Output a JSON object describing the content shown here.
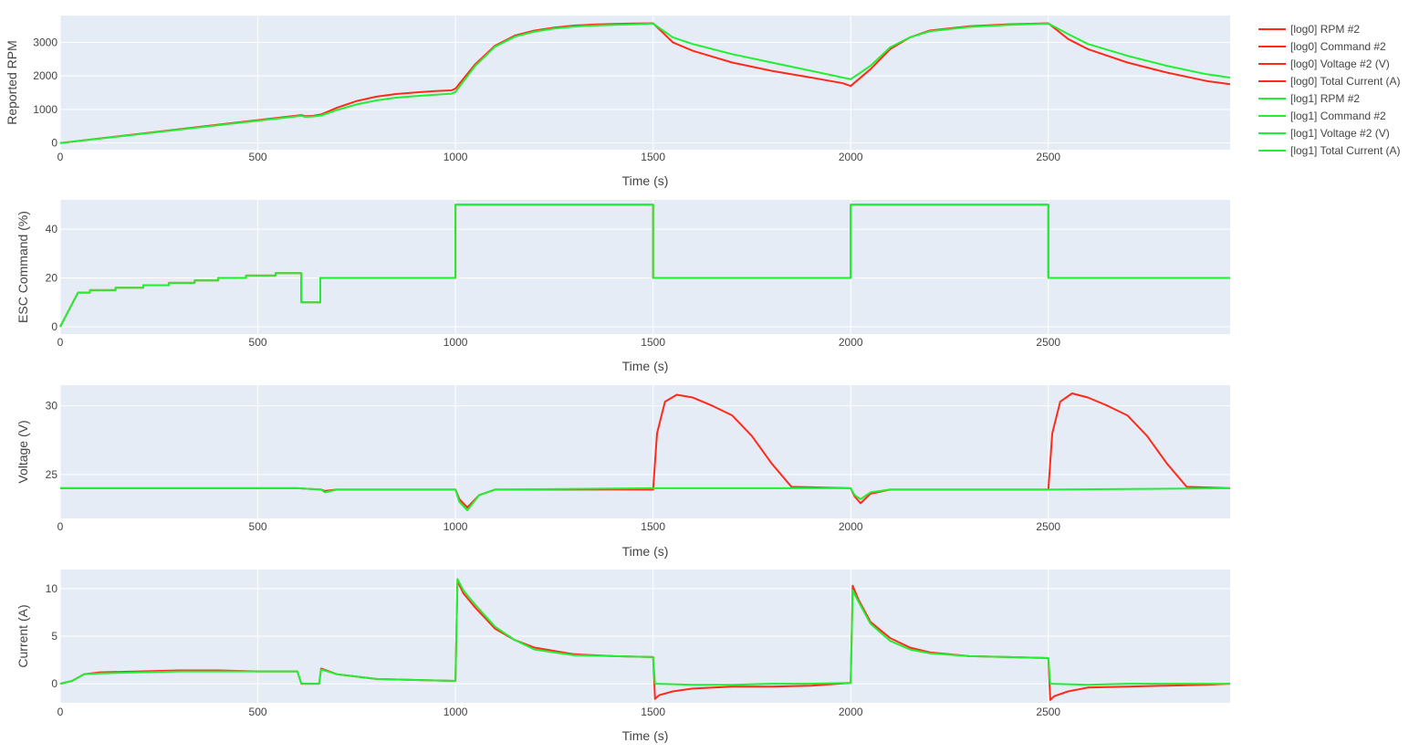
{
  "colors": {
    "plot_bg": "#e5ecf6",
    "grid": "#ffffff",
    "log0": "#ff2a1a",
    "log1": "#22ee33",
    "text": "#444444"
  },
  "legend": {
    "items": [
      {
        "label": "[log0] RPM #2",
        "group": "log0"
      },
      {
        "label": "[log0] Command #2",
        "group": "log0"
      },
      {
        "label": "[log0] Voltage #2 (V)",
        "group": "log0"
      },
      {
        "label": "[log0] Total Current (A)",
        "group": "log0"
      },
      {
        "label": "[log1] RPM #2",
        "group": "log1"
      },
      {
        "label": "[log1] Command #2",
        "group": "log1"
      },
      {
        "label": "[log1] Voltage #2 (V)",
        "group": "log1"
      },
      {
        "label": "[log1] Total Current (A)",
        "group": "log1"
      }
    ]
  },
  "chart_data": [
    {
      "type": "line",
      "ylabel": "Reported RPM",
      "xlabel": "Time (s)",
      "xlim": [
        0,
        2960
      ],
      "ylim": [
        -200,
        3800
      ],
      "xticks": [
        0,
        500,
        1000,
        1500,
        2000,
        2500
      ],
      "yticks": [
        0,
        1000,
        2000,
        3000
      ],
      "series": [
        {
          "name": "[log0] RPM #2",
          "group": "log0",
          "x": [
            0,
            610,
            620,
            640,
            660,
            700,
            750,
            800,
            850,
            900,
            950,
            990,
            1000,
            1050,
            1100,
            1150,
            1200,
            1250,
            1300,
            1350,
            1400,
            1450,
            1500,
            1550,
            1600,
            1700,
            1800,
            1900,
            1980,
            2000,
            2050,
            2100,
            2150,
            2200,
            2300,
            2400,
            2500,
            2550,
            2600,
            2700,
            2800,
            2900,
            2960
          ],
          "y": [
            0,
            830,
            800,
            810,
            850,
            1050,
            1250,
            1380,
            1460,
            1510,
            1550,
            1570,
            1620,
            2350,
            2900,
            3200,
            3350,
            3440,
            3500,
            3530,
            3550,
            3560,
            3570,
            3000,
            2750,
            2400,
            2150,
            1950,
            1780,
            1700,
            2200,
            2800,
            3150,
            3350,
            3480,
            3540,
            3570,
            3100,
            2800,
            2400,
            2100,
            1850,
            1750
          ]
        },
        {
          "name": "[log1] RPM #2",
          "group": "log1",
          "x": [
            0,
            610,
            620,
            640,
            660,
            700,
            750,
            800,
            850,
            900,
            950,
            990,
            1000,
            1050,
            1100,
            1150,
            1200,
            1250,
            1300,
            1350,
            1400,
            1450,
            1500,
            1550,
            1600,
            1700,
            1800,
            1900,
            1980,
            2000,
            2050,
            2100,
            2150,
            2200,
            2300,
            2400,
            2500,
            2550,
            2600,
            2700,
            2800,
            2900,
            2960
          ],
          "y": [
            0,
            810,
            780,
            790,
            820,
            980,
            1150,
            1270,
            1350,
            1400,
            1440,
            1470,
            1520,
            2300,
            2870,
            3170,
            3320,
            3410,
            3470,
            3500,
            3520,
            3540,
            3560,
            3150,
            2950,
            2650,
            2400,
            2150,
            1950,
            1900,
            2300,
            2850,
            3150,
            3330,
            3460,
            3520,
            3560,
            3250,
            2950,
            2600,
            2300,
            2050,
            1950
          ]
        }
      ]
    },
    {
      "type": "line",
      "ylabel": "ESC Command (%)",
      "xlabel": "Time (s)",
      "xlim": [
        0,
        2960
      ],
      "ylim": [
        -3,
        52
      ],
      "xticks": [
        0,
        500,
        1000,
        1500,
        2000,
        2500
      ],
      "yticks": [
        0,
        20,
        40
      ],
      "series": [
        {
          "name": "[log0] Command #2",
          "group": "log0",
          "x": [
            0,
            45,
            75,
            75,
            140,
            140,
            210,
            210,
            275,
            275,
            340,
            340,
            400,
            400,
            470,
            470,
            545,
            545,
            610,
            610,
            658,
            658,
            1000,
            1000,
            1500,
            1500,
            2000,
            2000,
            2500,
            2500,
            2960
          ],
          "y": [
            0,
            14,
            14,
            15,
            15,
            16,
            16,
            17,
            17,
            18,
            18,
            19,
            19,
            20,
            20,
            21,
            21,
            22,
            22,
            10,
            10,
            20,
            20,
            50,
            50,
            20,
            20,
            50,
            50,
            20,
            20
          ]
        },
        {
          "name": "[log1] Command #2",
          "group": "log1",
          "x": [
            0,
            45,
            75,
            75,
            140,
            140,
            210,
            210,
            275,
            275,
            340,
            340,
            400,
            400,
            470,
            470,
            545,
            545,
            610,
            610,
            658,
            658,
            1000,
            1000,
            1500,
            1500,
            2000,
            2000,
            2500,
            2500,
            2960
          ],
          "y": [
            0,
            14,
            14,
            15,
            15,
            16,
            16,
            17,
            17,
            18,
            18,
            19,
            19,
            20,
            20,
            21,
            21,
            22,
            22,
            10,
            10,
            20,
            20,
            50,
            50,
            20,
            20,
            50,
            50,
            20,
            20
          ]
        }
      ]
    },
    {
      "type": "line",
      "ylabel": "Voltage (V)",
      "xlabel": "Time (s)",
      "xlim": [
        0,
        2960
      ],
      "ylim": [
        21.8,
        31.5
      ],
      "xticks": [
        0,
        500,
        1000,
        1500,
        2000,
        2500
      ],
      "yticks": [
        25,
        30
      ],
      "series": [
        {
          "name": "[log0] Voltage #2 (V)",
          "group": "log0",
          "x": [
            0,
            600,
            660,
            670,
            700,
            1000,
            1010,
            1030,
            1060,
            1100,
            1500,
            1510,
            1530,
            1560,
            1600,
            1650,
            1700,
            1750,
            1800,
            1850,
            2000,
            2010,
            2025,
            2050,
            2100,
            2500,
            2510,
            2530,
            2560,
            2600,
            2650,
            2700,
            2750,
            2800,
            2850,
            2960
          ],
          "y": [
            24.0,
            24.0,
            23.9,
            23.8,
            23.9,
            23.9,
            23.2,
            22.6,
            23.5,
            23.9,
            23.9,
            28.0,
            30.3,
            30.8,
            30.6,
            30.0,
            29.3,
            27.8,
            25.8,
            24.1,
            24.0,
            23.4,
            22.9,
            23.6,
            23.9,
            23.9,
            28.0,
            30.3,
            30.9,
            30.6,
            30.0,
            29.3,
            27.8,
            25.8,
            24.1,
            24.0
          ]
        },
        {
          "name": "[log1] Voltage #2 (V)",
          "group": "log1",
          "x": [
            0,
            600,
            660,
            670,
            700,
            1000,
            1010,
            1030,
            1060,
            1100,
            1500,
            2000,
            2010,
            2025,
            2050,
            2100,
            2500,
            2960
          ],
          "y": [
            24.0,
            24.0,
            23.9,
            23.7,
            23.9,
            23.9,
            23.0,
            22.4,
            23.5,
            23.9,
            24.0,
            24.0,
            23.5,
            23.2,
            23.7,
            23.9,
            23.9,
            24.0
          ]
        }
      ]
    },
    {
      "type": "line",
      "ylabel": "Current (A)",
      "xlabel": "Time (s)",
      "xlim": [
        0,
        2960
      ],
      "ylim": [
        -2,
        12
      ],
      "xticks": [
        0,
        500,
        1000,
        1500,
        2000,
        2500
      ],
      "yticks": [
        0,
        5,
        10
      ],
      "series": [
        {
          "name": "[log0] Total Current (A)",
          "group": "log0",
          "x": [
            0,
            30,
            60,
            100,
            200,
            300,
            400,
            500,
            600,
            610,
            650,
            655,
            660,
            700,
            800,
            900,
            1000,
            1005,
            1020,
            1050,
            1100,
            1150,
            1200,
            1300,
            1400,
            1500,
            1505,
            1515,
            1550,
            1600,
            1700,
            1800,
            1900,
            2000,
            2005,
            2020,
            2050,
            2100,
            2150,
            2200,
            2300,
            2400,
            2500,
            2505,
            2515,
            2550,
            2600,
            2700,
            2800,
            2900,
            2960
          ],
          "y": [
            0,
            0.3,
            1.0,
            1.2,
            1.3,
            1.4,
            1.4,
            1.3,
            1.3,
            0,
            0,
            0,
            1.6,
            1.0,
            0.5,
            0.4,
            0.3,
            10.8,
            9.5,
            8.0,
            5.8,
            4.6,
            3.8,
            3.1,
            2.9,
            2.8,
            -1.6,
            -1.2,
            -0.8,
            -0.5,
            -0.3,
            -0.3,
            -0.2,
            0.1,
            10.3,
            8.8,
            6.5,
            4.8,
            3.8,
            3.3,
            2.9,
            2.8,
            2.7,
            -1.7,
            -1.3,
            -0.8,
            -0.4,
            -0.3,
            -0.2,
            -0.1,
            0
          ]
        },
        {
          "name": "[log1] Total Current (A)",
          "group": "log1",
          "x": [
            0,
            30,
            60,
            100,
            200,
            300,
            400,
            500,
            600,
            610,
            650,
            655,
            660,
            700,
            800,
            900,
            1000,
            1005,
            1020,
            1050,
            1100,
            1150,
            1200,
            1300,
            1400,
            1500,
            1505,
            1600,
            1700,
            1800,
            1900,
            2000,
            2005,
            2020,
            2050,
            2100,
            2150,
            2200,
            2300,
            2400,
            2500,
            2505,
            2600,
            2700,
            2800,
            2900,
            2960
          ],
          "y": [
            0,
            0.3,
            1.0,
            1.1,
            1.2,
            1.3,
            1.3,
            1.3,
            1.3,
            0,
            0,
            0,
            1.5,
            1.0,
            0.5,
            0.4,
            0.3,
            11.0,
            9.8,
            8.3,
            6.0,
            4.6,
            3.6,
            3.0,
            2.9,
            2.8,
            0,
            -0.1,
            -0.1,
            0,
            0,
            0.1,
            9.8,
            8.6,
            6.3,
            4.5,
            3.6,
            3.2,
            2.9,
            2.8,
            2.7,
            0,
            -0.1,
            0,
            0,
            0,
            0
          ]
        }
      ]
    }
  ]
}
